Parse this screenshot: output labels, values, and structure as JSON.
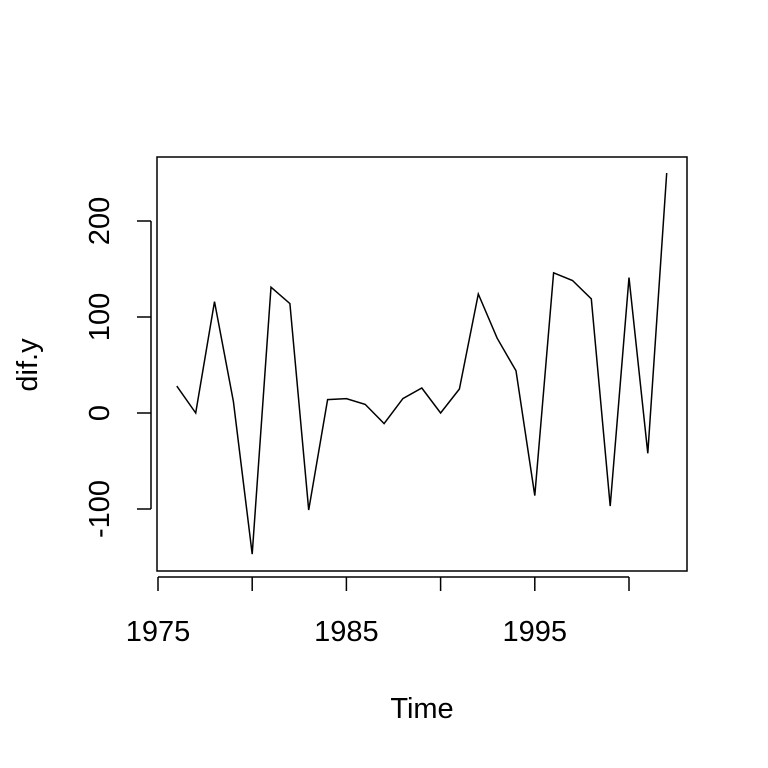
{
  "chart_data": {
    "type": "line",
    "xlabel": "Time",
    "ylabel": "dif.y",
    "xlim": [
      1975,
      2003
    ],
    "ylim": [
      -160,
      265
    ],
    "xticks": [
      1975,
      1980,
      1985,
      1990,
      1995,
      2000
    ],
    "xtick_labels": [
      "1975",
      "",
      "1985",
      "",
      "1995",
      ""
    ],
    "yticks": [
      -100,
      0,
      100,
      200
    ],
    "ytick_labels": [
      "-100",
      "0",
      "100",
      "200"
    ],
    "grid": false,
    "legend": "none",
    "series": [
      {
        "x": [
          1976,
          1977,
          1978,
          1979,
          1980,
          1981,
          1982,
          1983,
          1984,
          1985,
          1986,
          1987,
          1988,
          1989,
          1990,
          1991,
          1992,
          1993,
          1994,
          1995,
          1996,
          1997,
          1998,
          1999,
          2000,
          2001,
          2002
        ],
        "values": [
          28,
          0,
          116,
          12,
          -147,
          131,
          114,
          -101,
          14,
          15,
          9,
          -11,
          15,
          26,
          0,
          25,
          124,
          78,
          44,
          -86,
          146,
          138,
          119,
          -97,
          141,
          -42,
          250
        ],
        "color": "#000000"
      }
    ]
  }
}
